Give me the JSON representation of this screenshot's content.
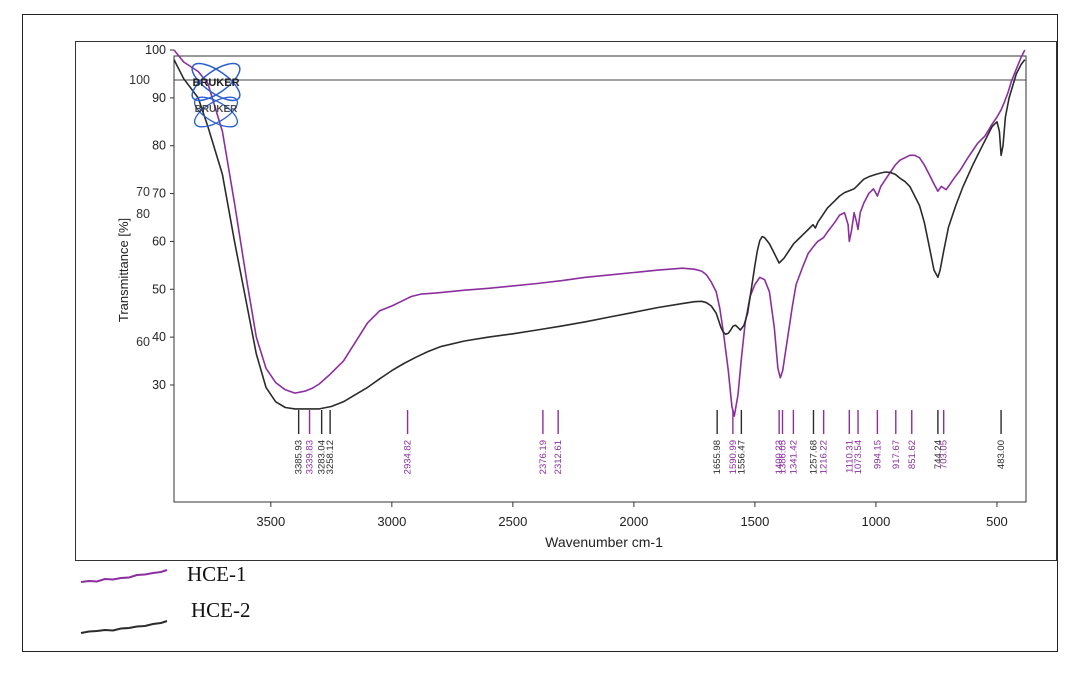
{
  "chart_data": {
    "type": "line",
    "xlabel": "Wavenumber cm-1",
    "ylabel": "Transmittance [%]",
    "xlim": [
      3900,
      380
    ],
    "x_ticks": [
      "3500",
      "3000",
      "2500",
      "2000",
      "1500",
      "1000",
      "500"
    ],
    "y_ticks_primary": [
      "30",
      "40",
      "50",
      "60",
      "70",
      "80",
      "90",
      "100"
    ],
    "y_ticks_secondary": [
      "60",
      "70",
      "80",
      "100"
    ],
    "logo_text": "BRUKER",
    "series": [
      {
        "name": "HCE-1",
        "color": "#8b2f9f",
        "x": [
          3900,
          3860,
          3800,
          3760,
          3700,
          3650,
          3600,
          3560,
          3520,
          3480,
          3440,
          3400,
          3360,
          3330,
          3300,
          3260,
          3200,
          3150,
          3100,
          3050,
          3000,
          2960,
          2920,
          2880,
          2820,
          2700,
          2600,
          2500,
          2400,
          2300,
          2200,
          2100,
          2000,
          1900,
          1800,
          1750,
          1720,
          1700,
          1680,
          1660,
          1645,
          1630,
          1610,
          1595,
          1585,
          1570,
          1555,
          1540,
          1520,
          1500,
          1480,
          1460,
          1440,
          1420,
          1405,
          1395,
          1385,
          1375,
          1360,
          1345,
          1330,
          1300,
          1280,
          1257,
          1240,
          1216,
          1200,
          1170,
          1150,
          1130,
          1115,
          1110,
          1100,
          1090,
          1080,
          1074,
          1065,
          1050,
          1030,
          1010,
          994,
          980,
          960,
          940,
          920,
          900,
          880,
          860,
          840,
          820,
          800,
          780,
          760,
          744,
          730,
          710,
          700,
          680,
          650,
          620,
          600,
          580,
          550,
          520,
          500,
          483,
          470,
          455,
          440,
          420,
          400,
          385
        ],
        "y": [
          100,
          97.5,
          95.5,
          93,
          83,
          68,
          52,
          40,
          33.5,
          30.5,
          29,
          28.3,
          28.7,
          29.3,
          30.2,
          32,
          35,
          39,
          43,
          45.5,
          46.5,
          47.5,
          48.5,
          49,
          49.2,
          49.8,
          50.2,
          50.7,
          51.2,
          51.8,
          52.5,
          53,
          53.5,
          54,
          54.4,
          54.2,
          53.8,
          53,
          51.5,
          49.5,
          46,
          41,
          33,
          25.5,
          23.5,
          28,
          36,
          43,
          48.5,
          51,
          52.5,
          52,
          49.5,
          42,
          33.5,
          31.5,
          33,
          36.5,
          41.5,
          46.5,
          51,
          55,
          57.5,
          59,
          60,
          60.8,
          62,
          64,
          65.5,
          66,
          63.5,
          60,
          62.5,
          66,
          64,
          62.5,
          66,
          68,
          70,
          71,
          69.5,
          71.5,
          73,
          74.5,
          76,
          77,
          77.5,
          78,
          78,
          77.5,
          76,
          74,
          72,
          70.5,
          71.5,
          70.8,
          71.5,
          73,
          75,
          77.5,
          79,
          80.5,
          82,
          84.5,
          86,
          87.5,
          89,
          91,
          93.5,
          96,
          98.5,
          100
        ]
      },
      {
        "name": "HCE-2",
        "color": "#2b2b2b",
        "x": [
          3900,
          3860,
          3800,
          3760,
          3700,
          3650,
          3600,
          3560,
          3520,
          3480,
          3440,
          3400,
          3360,
          3300,
          3250,
          3200,
          3150,
          3100,
          3050,
          3000,
          2950,
          2900,
          2850,
          2800,
          2700,
          2600,
          2500,
          2400,
          2300,
          2200,
          2100,
          2000,
          1900,
          1800,
          1750,
          1720,
          1700,
          1680,
          1660,
          1650,
          1640,
          1630,
          1620,
          1610,
          1600,
          1590,
          1580,
          1570,
          1560,
          1545,
          1530,
          1515,
          1500,
          1490,
          1480,
          1470,
          1460,
          1440,
          1420,
          1400,
          1380,
          1360,
          1340,
          1320,
          1300,
          1280,
          1260,
          1250,
          1240,
          1220,
          1200,
          1170,
          1150,
          1130,
          1110,
          1100,
          1090,
          1080,
          1070,
          1060,
          1050,
          1030,
          1000,
          980,
          960,
          940,
          920,
          900,
          880,
          860,
          840,
          820,
          800,
          780,
          760,
          744,
          735,
          720,
          700,
          670,
          640,
          600,
          560,
          520,
          500,
          490,
          483,
          475,
          465,
          450,
          420,
          400,
          385
        ],
        "y": [
          98,
          94,
          90,
          84,
          74,
          60,
          47,
          36.5,
          29.5,
          26.5,
          25.3,
          25,
          25,
          25,
          25.5,
          26.5,
          28,
          29.5,
          31.3,
          33,
          34.5,
          35.8,
          37,
          38,
          39.2,
          40,
          40.7,
          41.5,
          42.3,
          43.2,
          44.2,
          45.2,
          46.2,
          47,
          47.4,
          47.5,
          47.2,
          46.5,
          45,
          43.5,
          42,
          41,
          40.6,
          40.8,
          41.5,
          42.3,
          42.5,
          42,
          41.5,
          42.5,
          45,
          50,
          55,
          58,
          60.2,
          61,
          60.8,
          59.5,
          57.5,
          55.5,
          56.5,
          58,
          59.5,
          60.5,
          61.5,
          62.5,
          63.5,
          62.8,
          64,
          65.5,
          67,
          68.5,
          69.5,
          70.2,
          70.6,
          70.8,
          71,
          71.5,
          72,
          72.5,
          73,
          73.5,
          74,
          74.3,
          74.5,
          74.4,
          74,
          73.2,
          72.5,
          71.5,
          69.5,
          67.5,
          64,
          59,
          54,
          52.5,
          54,
          58,
          63,
          67.5,
          71.5,
          76,
          80,
          84,
          85,
          83,
          78,
          80,
          86,
          90,
          95,
          97,
          98
        ]
      }
    ],
    "peak_labels": [
      {
        "text": "3385.93",
        "x": 3385,
        "color": "#2b2b2b"
      },
      {
        "text": "3339.83",
        "x": 3340,
        "color": "#8b2f9f"
      },
      {
        "text": "3283.04",
        "x": 3290,
        "color": "#2b2b2b"
      },
      {
        "text": "3258.12",
        "x": 3255,
        "color": "#2b2b2b"
      },
      {
        "text": "2934.82",
        "x": 2935,
        "color": "#8b2f9f"
      },
      {
        "text": "2376.19",
        "x": 2376,
        "color": "#8b2f9f"
      },
      {
        "text": "2312.61",
        "x": 2313,
        "color": "#8b2f9f"
      },
      {
        "text": "1655.98",
        "x": 1656,
        "color": "#2b2b2b"
      },
      {
        "text": "1590.99",
        "x": 1591,
        "color": "#8b2f9f"
      },
      {
        "text": "1556.47",
        "x": 1556,
        "color": "#2b2b2b"
      },
      {
        "text": "1400.23",
        "x": 1400,
        "color": "#8b2f9f"
      },
      {
        "text": "1386.05",
        "x": 1386,
        "color": "#8b2f9f"
      },
      {
        "text": "1341.42",
        "x": 1341,
        "color": "#8b2f9f"
      },
      {
        "text": "1257.68",
        "x": 1258,
        "color": "#2b2b2b"
      },
      {
        "text": "1216.22",
        "x": 1216,
        "color": "#8b2f9f"
      },
      {
        "text": "1110.31",
        "x": 1110,
        "color": "#8b2f9f"
      },
      {
        "text": "1073.54",
        "x": 1074,
        "color": "#8b2f9f"
      },
      {
        "text": "994.15",
        "x": 994,
        "color": "#8b2f9f"
      },
      {
        "text": "917.67",
        "x": 918,
        "color": "#8b2f9f"
      },
      {
        "text": "851.62",
        "x": 852,
        "color": "#8b2f9f"
      },
      {
        "text": "744.24",
        "x": 744,
        "color": "#2b2b2b"
      },
      {
        "text": "703.05",
        "x": 720,
        "color": "#8b2f9f"
      },
      {
        "text": "483.00",
        "x": 483,
        "color": "#2b2b2b"
      }
    ]
  },
  "legend": [
    {
      "label": "HCE-1",
      "color": "#8b2f9f"
    },
    {
      "label": "HCE-2",
      "color": "#2b2b2b"
    }
  ]
}
